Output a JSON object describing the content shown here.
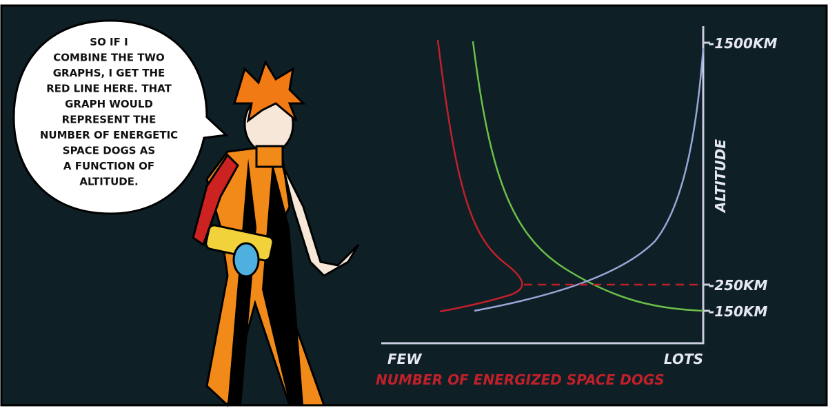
{
  "speech_bubble": {
    "lines": [
      "SO IF I",
      "COMBINE THE TWO",
      "GRAPHS, I GET THE",
      "RED LINE HERE.  THAT",
      "GRAPH WOULD",
      "REPRESENT THE",
      "NUMBER OF ENERGETIC",
      "SPACE DOGS AS",
      "A FUNCTION OF",
      "ALTITUDE."
    ]
  },
  "graph": {
    "y_axis_label": "ALTITUDE",
    "y_labels": [
      "-1500KM",
      "-250KM",
      "-150KM"
    ],
    "x_labels": [
      "FEW",
      "LOTS"
    ],
    "x_axis_label": "NUMBER OF  ENERGIZED SPACE DOGS"
  }
}
